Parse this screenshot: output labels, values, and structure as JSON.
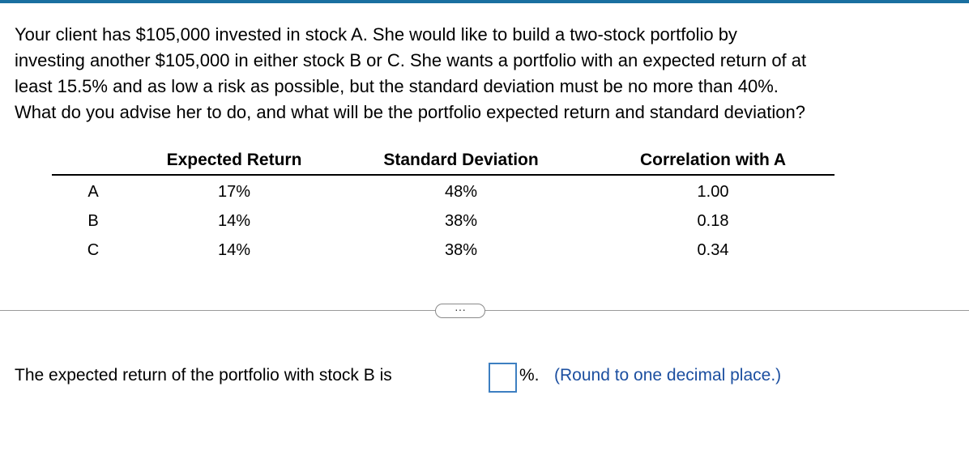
{
  "question": {
    "lines": [
      "Your client has $105,000 invested in stock A. She would like to build a two-stock portfolio by",
      "investing another $105,000 in either stock B or C. She wants a portfolio with an expected return of at",
      "least 15.5% and as low a risk as possible, but the standard deviation must be no more than 40%.",
      "What do you advise her to do, and what will be the portfolio expected return and standard deviation?"
    ]
  },
  "table": {
    "headers": [
      "Expected Return",
      "Standard Deviation",
      "Correlation with A"
    ],
    "rows": [
      [
        "A",
        "17%",
        "48%",
        "1.00"
      ],
      [
        "B",
        "14%",
        "38%",
        "0.18"
      ],
      [
        "C",
        "14%",
        "38%",
        "0.34"
      ]
    ]
  },
  "answer": {
    "prompt": "The expected return of the portfolio with stock B is",
    "unit": "%.",
    "hint": "(Round to one decimal place.)"
  }
}
